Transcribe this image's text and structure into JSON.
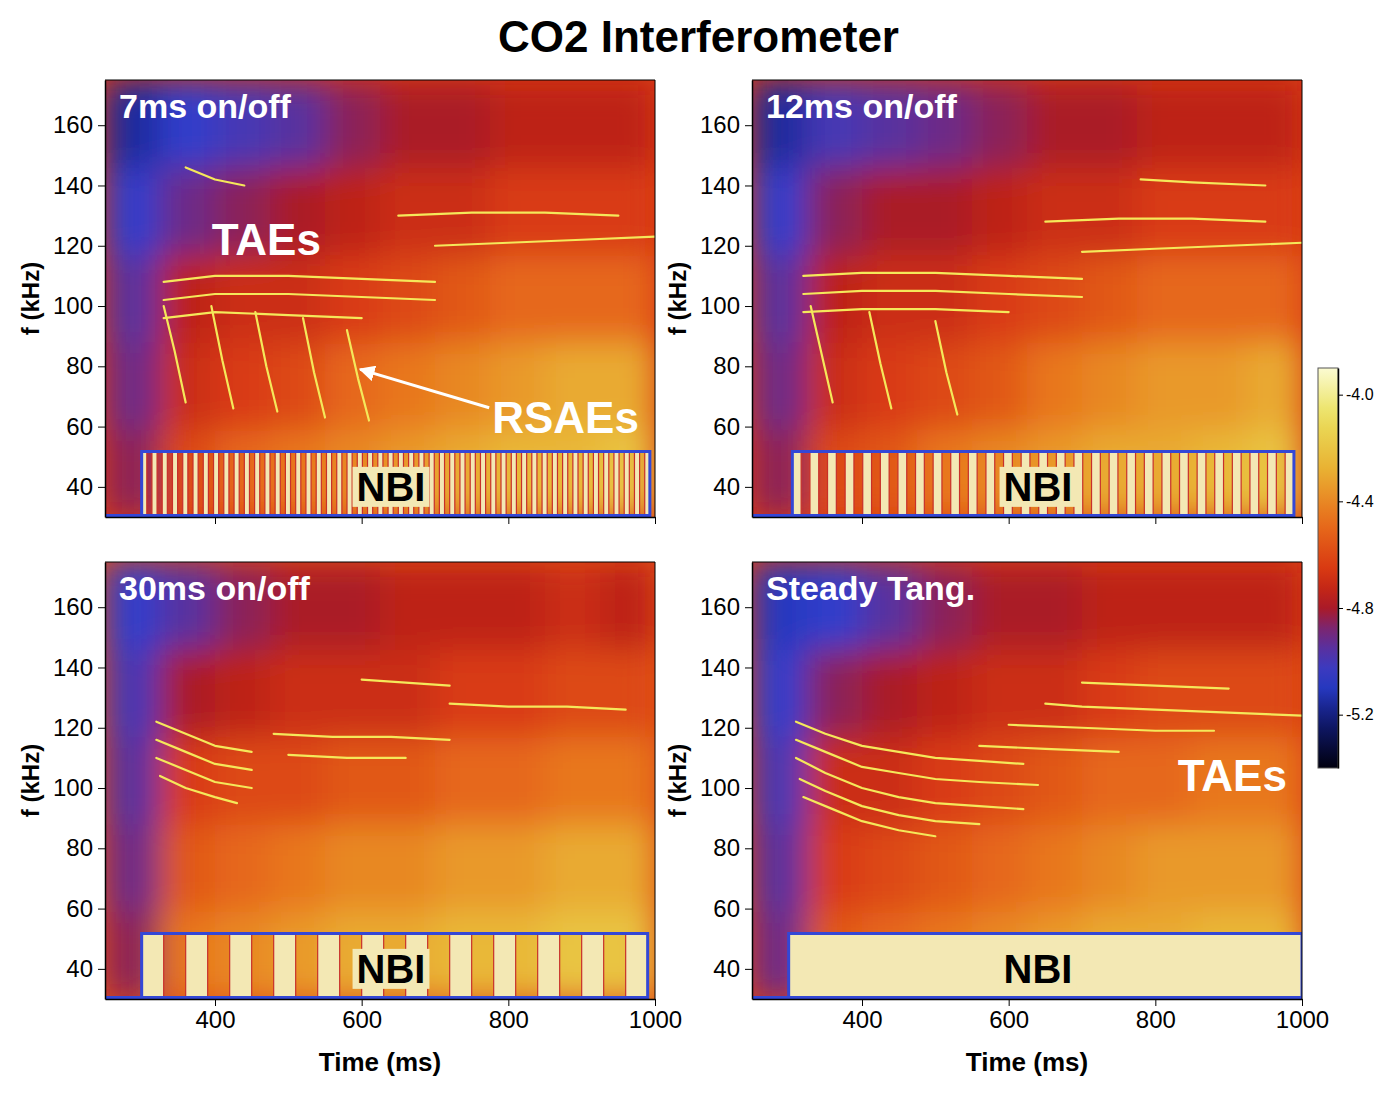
{
  "title": "CO2 Interferometer",
  "colorbar": {
    "clim": [
      -5.4,
      -3.9
    ],
    "ticks": [
      {
        "value": -4,
        "label": "-4.0"
      },
      -4.4,
      -4.8,
      -5.2
    ]
  },
  "chart_data": [
    {
      "type": "spectrogram",
      "title": "7ms on/off",
      "ylabel": "f (kHz)",
      "xlim": [
        250,
        1000
      ],
      "ylim": [
        30,
        175
      ],
      "xticks": [
        400,
        600,
        800,
        1000
      ],
      "yticks": [
        40,
        60,
        80,
        100,
        120,
        140,
        160
      ],
      "tick_labels": "y",
      "time_bins": [
        250,
        325,
        400,
        475,
        550,
        625,
        700,
        775,
        850,
        925,
        1000
      ],
      "freq_bins": [
        30,
        59,
        88,
        117,
        146,
        175
      ],
      "cells": [
        [
          -4.85,
          -4.6,
          -4.5,
          -4.45,
          -4.4,
          -4.35,
          -4.3,
          -4.25,
          -4.25,
          -4.2
        ],
        [
          -4.9,
          -4.7,
          -4.65,
          -4.6,
          -4.5,
          -4.45,
          -4.4,
          -4.35,
          -4.3,
          -4.3
        ],
        [
          -4.95,
          -4.75,
          -4.7,
          -4.7,
          -4.65,
          -4.6,
          -4.55,
          -4.5,
          -4.5,
          -4.5
        ],
        [
          -5.05,
          -4.9,
          -4.85,
          -4.8,
          -4.75,
          -4.7,
          -4.7,
          -4.65,
          -4.65,
          -4.65
        ],
        [
          -5.15,
          -5.05,
          -5.0,
          -4.95,
          -4.85,
          -4.8,
          -4.8,
          -4.75,
          -4.75,
          -4.75
        ]
      ],
      "color": "#f5e85a",
      "series": [
        {
          "x": [
            330,
            400,
            500,
            600,
            700
          ],
          "values": [
            108,
            110,
            110,
            109,
            108
          ]
        },
        {
          "x": [
            330,
            400,
            500,
            600,
            700
          ],
          "values": [
            102,
            104,
            104,
            103,
            102
          ]
        },
        {
          "x": [
            330,
            400,
            500,
            600
          ],
          "values": [
            96,
            98,
            97,
            96
          ]
        },
        {
          "x": [
            700,
            800,
            900,
            1000
          ],
          "values": [
            120,
            121,
            122,
            123
          ]
        },
        {
          "x": [
            650,
            750,
            850,
            950
          ],
          "values": [
            130,
            131,
            131,
            130
          ]
        },
        {
          "x": [
            360,
            400,
            440
          ],
          "values": [
            146,
            142,
            140
          ]
        },
        {
          "x": [
            330,
            345,
            360
          ],
          "values": [
            100,
            85,
            68
          ]
        },
        {
          "x": [
            395,
            410,
            425
          ],
          "values": [
            100,
            82,
            66
          ]
        },
        {
          "x": [
            455,
            470,
            485
          ],
          "values": [
            98,
            80,
            65
          ]
        },
        {
          "x": [
            520,
            535,
            550
          ],
          "values": [
            96,
            78,
            63
          ]
        },
        {
          "x": [
            580,
            595,
            610
          ],
          "values": [
            92,
            76,
            62
          ]
        }
      ],
      "nbi": {
        "starts": [
          300,
          314,
          328,
          342,
          356,
          370,
          384,
          398,
          412,
          426,
          440,
          454,
          468,
          482,
          496,
          510,
          524,
          538,
          552,
          566,
          580,
          594,
          608,
          622,
          636,
          650,
          664,
          678,
          692,
          706,
          720,
          734,
          748,
          762,
          776,
          790,
          804,
          818,
          832,
          846,
          860,
          874,
          888,
          902,
          916,
          930,
          944,
          958,
          972,
          986
        ],
        "duration": 7,
        "color": "#3347d6"
      },
      "annotations": [
        {
          "text": "TAEs",
          "x": 470,
          "y": 122,
          "color": "#ffffff"
        },
        {
          "text": "RSAEs",
          "x": 878,
          "y": 63,
          "color": "#ffffff",
          "arrow": [
            598,
            79
          ]
        },
        {
          "text": "NBI",
          "x": 640,
          "y": 40,
          "color": "#000000"
        }
      ]
    },
    {
      "type": "spectrogram",
      "title": "12ms on/off",
      "ylabel": "f (kHz)",
      "xlim": [
        250,
        1000
      ],
      "ylim": [
        30,
        175
      ],
      "xticks": [
        400,
        600,
        800,
        1000
      ],
      "yticks": [
        40,
        60,
        80,
        100,
        120,
        140,
        160
      ],
      "tick_labels": "y",
      "time_bins": [
        250,
        325,
        400,
        475,
        550,
        625,
        700,
        775,
        850,
        925,
        1000
      ],
      "freq_bins": [
        30,
        59,
        88,
        117,
        146,
        175
      ],
      "cells": [
        [
          -4.85,
          -4.6,
          -4.55,
          -4.45,
          -4.4,
          -4.35,
          -4.3,
          -4.3,
          -4.25,
          -4.2
        ],
        [
          -4.9,
          -4.7,
          -4.65,
          -4.6,
          -4.55,
          -4.45,
          -4.4,
          -4.35,
          -4.35,
          -4.3
        ],
        [
          -4.95,
          -4.75,
          -4.7,
          -4.7,
          -4.65,
          -4.6,
          -4.55,
          -4.5,
          -4.5,
          -4.5
        ],
        [
          -5.05,
          -4.85,
          -4.8,
          -4.8,
          -4.75,
          -4.7,
          -4.7,
          -4.65,
          -4.65,
          -4.65
        ],
        [
          -5.15,
          -5.0,
          -4.95,
          -4.9,
          -4.85,
          -4.8,
          -4.8,
          -4.75,
          -4.75,
          -4.75
        ]
      ],
      "color": "#f5e85a",
      "series": [
        {
          "x": [
            320,
            400,
            500,
            600,
            700
          ],
          "values": [
            110,
            111,
            111,
            110,
            109
          ]
        },
        {
          "x": [
            320,
            400,
            500,
            600,
            700
          ],
          "values": [
            104,
            105,
            105,
            104,
            103
          ]
        },
        {
          "x": [
            320,
            400,
            500,
            600
          ],
          "values": [
            98,
            99,
            99,
            98
          ]
        },
        {
          "x": [
            330,
            345,
            360
          ],
          "values": [
            100,
            84,
            68
          ]
        },
        {
          "x": [
            410,
            425,
            440
          ],
          "values": [
            98,
            81,
            66
          ]
        },
        {
          "x": [
            500,
            515,
            530
          ],
          "values": [
            95,
            78,
            64
          ]
        },
        {
          "x": [
            700,
            800,
            900,
            1000
          ],
          "values": [
            118,
            119,
            120,
            121
          ]
        },
        {
          "x": [
            650,
            750,
            850,
            950
          ],
          "values": [
            128,
            129,
            129,
            128
          ]
        },
        {
          "x": [
            780,
            850,
            950
          ],
          "values": [
            142,
            141,
            140
          ]
        }
      ],
      "nbi": {
        "starts": [
          305,
          329,
          353,
          377,
          401,
          425,
          449,
          473,
          497,
          521,
          545,
          569,
          593,
          617,
          641,
          665,
          689,
          713,
          737,
          761,
          785,
          809,
          833,
          857,
          881,
          905,
          929,
          953,
          977
        ],
        "duration": 12,
        "color": "#3347d6"
      },
      "annotations": [
        {
          "text": "NBI",
          "x": 640,
          "y": 40,
          "color": "#000000"
        }
      ]
    },
    {
      "type": "spectrogram",
      "title": "30ms on/off",
      "xlabel": "Time (ms)",
      "ylabel": "f (kHz)",
      "xlim": [
        250,
        1000
      ],
      "ylim": [
        30,
        175
      ],
      "xticks": [
        400,
        600,
        800,
        1000
      ],
      "yticks": [
        40,
        60,
        80,
        100,
        120,
        140,
        160
      ],
      "time_bins": [
        250,
        325,
        400,
        475,
        550,
        625,
        700,
        775,
        850,
        925,
        1000
      ],
      "freq_bins": [
        30,
        59,
        88,
        117,
        146,
        175
      ],
      "cells": [
        [
          -4.85,
          -4.45,
          -4.4,
          -4.35,
          -4.3,
          -4.3,
          -4.25,
          -4.25,
          -4.2,
          -4.2
        ],
        [
          -4.9,
          -4.55,
          -4.5,
          -4.45,
          -4.4,
          -4.4,
          -4.35,
          -4.35,
          -4.3,
          -4.3
        ],
        [
          -4.95,
          -4.65,
          -4.6,
          -4.6,
          -4.55,
          -4.55,
          -4.5,
          -4.5,
          -4.45,
          -4.45
        ],
        [
          -5.0,
          -4.8,
          -4.75,
          -4.7,
          -4.7,
          -4.7,
          -4.65,
          -4.65,
          -4.6,
          -4.6
        ],
        [
          -5.05,
          -4.95,
          -4.85,
          -4.8,
          -4.8,
          -4.75,
          -4.75,
          -4.75,
          -4.7,
          -4.75
        ]
      ],
      "color": "#f5e85a",
      "series": [
        {
          "x": [
            320,
            360,
            400,
            450
          ],
          "values": [
            122,
            118,
            114,
            112
          ]
        },
        {
          "x": [
            320,
            360,
            400,
            450
          ],
          "values": [
            116,
            112,
            108,
            106
          ]
        },
        {
          "x": [
            320,
            360,
            400,
            450
          ],
          "values": [
            110,
            106,
            102,
            100
          ]
        },
        {
          "x": [
            325,
            360,
            400,
            430
          ],
          "values": [
            104,
            100,
            97,
            95
          ]
        },
        {
          "x": [
            480,
            560,
            640,
            720
          ],
          "values": [
            118,
            117,
            117,
            116
          ]
        },
        {
          "x": [
            500,
            580,
            660
          ],
          "values": [
            111,
            110,
            110
          ]
        },
        {
          "x": [
            600,
            660,
            720
          ],
          "values": [
            136,
            135,
            134
          ]
        },
        {
          "x": [
            720,
            800,
            880,
            960
          ],
          "values": [
            128,
            127,
            127,
            126
          ]
        }
      ],
      "nbi": {
        "starts": [
          300,
          360,
          420,
          480,
          540,
          600,
          660,
          720,
          780,
          840,
          900,
          960
        ],
        "duration": 30,
        "color": "#3347d6"
      },
      "annotations": [
        {
          "text": "NBI",
          "x": 640,
          "y": 40,
          "color": "#000000"
        }
      ]
    },
    {
      "type": "spectrogram",
      "title": "Steady Tang.",
      "xlabel": "Time (ms)",
      "ylabel": "f (kHz)",
      "xlim": [
        250,
        1000
      ],
      "ylim": [
        30,
        175
      ],
      "xticks": [
        400,
        600,
        800,
        1000
      ],
      "yticks": [
        40,
        60,
        80,
        100,
        120,
        140,
        160
      ],
      "time_bins": [
        250,
        325,
        400,
        475,
        550,
        625,
        700,
        775,
        850,
        925,
        1000
      ],
      "freq_bins": [
        30,
        59,
        88,
        117,
        146,
        175
      ],
      "cells": [
        [
          -4.9,
          -4.55,
          -4.5,
          -4.45,
          -4.4,
          -4.35,
          -4.3,
          -4.3,
          -4.25,
          -4.25
        ],
        [
          -4.95,
          -4.65,
          -4.6,
          -4.55,
          -4.5,
          -4.45,
          -4.4,
          -4.35,
          -4.35,
          -4.35
        ],
        [
          -5.0,
          -4.7,
          -4.7,
          -4.65,
          -4.6,
          -4.55,
          -4.5,
          -4.5,
          -4.45,
          -4.45
        ],
        [
          -5.05,
          -4.85,
          -4.8,
          -4.75,
          -4.7,
          -4.7,
          -4.65,
          -4.6,
          -4.6,
          -4.6
        ],
        [
          -5.1,
          -5.05,
          -4.95,
          -4.85,
          -4.8,
          -4.8,
          -4.75,
          -4.75,
          -4.75,
          -4.75
        ]
      ],
      "color": "#f5e85a",
      "series": [
        {
          "x": [
            310,
            350,
            400,
            450,
            500,
            560,
            620
          ],
          "values": [
            122,
            118,
            114,
            112,
            110,
            109,
            108
          ]
        },
        {
          "x": [
            310,
            350,
            400,
            450,
            500,
            560,
            640
          ],
          "values": [
            116,
            112,
            107,
            105,
            103,
            102,
            101
          ]
        },
        {
          "x": [
            310,
            350,
            400,
            450,
            500,
            560,
            620
          ],
          "values": [
            110,
            105,
            100,
            97,
            95,
            94,
            93
          ]
        },
        {
          "x": [
            315,
            350,
            400,
            450,
            500,
            560
          ],
          "values": [
            103,
            99,
            94,
            91,
            89,
            88
          ]
        },
        {
          "x": [
            320,
            360,
            400,
            450,
            500
          ],
          "values": [
            97,
            93,
            89,
            86,
            84
          ]
        },
        {
          "x": [
            650,
            700,
            800,
            900,
            1000
          ],
          "values": [
            128,
            127,
            126,
            125,
            124
          ]
        },
        {
          "x": [
            600,
            700,
            800,
            880
          ],
          "values": [
            121,
            120,
            119,
            119
          ]
        },
        {
          "x": [
            560,
            650,
            750
          ],
          "values": [
            114,
            113,
            112
          ]
        },
        {
          "x": [
            700,
            800,
            900
          ],
          "values": [
            135,
            134,
            133
          ]
        }
      ],
      "nbi": {
        "starts": [
          300
        ],
        "duration": 700,
        "color": "#3347d6"
      },
      "annotations": [
        {
          "text": "TAEs",
          "x": 905,
          "y": 104,
          "color": "#ffffff"
        },
        {
          "text": "NBI",
          "x": 640,
          "y": 40,
          "color": "#000000"
        }
      ]
    }
  ]
}
